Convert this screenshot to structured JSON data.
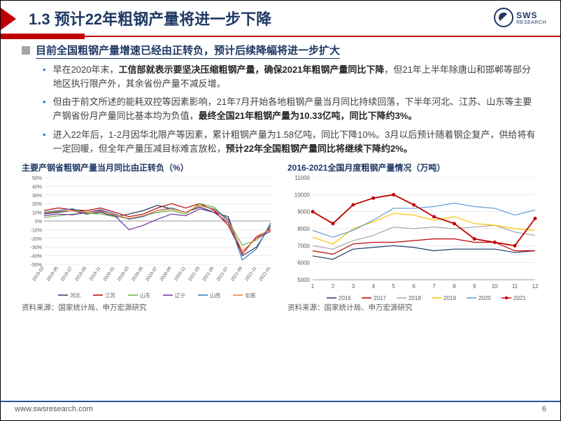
{
  "slide": {
    "title": "1.3 预计22年粗钢产量将进一步下降",
    "logo_text": "SWS",
    "logo_sub": "RESEARCH",
    "section_header": "目前全国粗钢产量增速已经由正转负，预计后续降幅将进一步扩大",
    "bullets": [
      {
        "pre": "早在2020年末，",
        "bold1": "工信部就表示要坚决压缩粗钢产量，确保2021年粗钢产量同比下降",
        "post1": "，但21年上半年除唐山和邯郸等部分地区执行限产外，其余省份产量不减反增。"
      },
      {
        "pre": "但由于前文所述的能耗双控等因素影响，21年7月开始各地粗钢产量当月同比持续回落，下半年河北、江苏、山东等主要产钢省份月产量同比基本均为负值，",
        "bold1": "最终全国21年粗钢产量为10.33亿吨，同比下降约3%。",
        "post1": ""
      },
      {
        "pre": "进入22年后，1-2月因华北限产等因素，累计粗钢产量为1.58亿吨，同比下降10%。3月以后预计随着钢企复产，供给将有一定回暖，但全年产量压减目标难言放松，",
        "bold1": "预计22年全国粗钢产量同比将继续下降约2%。",
        "post1": ""
      }
    ],
    "charts": {
      "left": {
        "title": "主要产钢省粗钢产量当月同比由正转负（%）",
        "source": "资料来源：国家统计局、申万宏源研究",
        "y_ticks": [
          "50%",
          "40%",
          "30%",
          "20%",
          "10%",
          "0%",
          "-10%",
          "-20%",
          "-30%",
          "-40%",
          "-50%"
        ],
        "x_ticks": [
          "2019-03",
          "2019-05",
          "2019-07",
          "2019-09",
          "2019-11",
          "2020-01",
          "2020-03",
          "2020-05",
          "2020-07",
          "2020-09",
          "2020-11",
          "2021-03",
          "2021-05",
          "2021-07",
          "2021-09",
          "2021-11",
          "2022-01"
        ],
        "legend": [
          {
            "label": "河北",
            "color": "#1f3864"
          },
          {
            "label": "江苏",
            "color": "#c00000"
          },
          {
            "label": "山东",
            "color": "#70ad47"
          },
          {
            "label": "辽宁",
            "color": "#7030a0"
          },
          {
            "label": "山西",
            "color": "#2e75b6"
          },
          {
            "label": "全国",
            "color": "#ed7d31"
          }
        ],
        "series": {
          "hebei": [
            8,
            10,
            12,
            8,
            10,
            5,
            8,
            12,
            18,
            14,
            10,
            16,
            10,
            5,
            -40,
            -30,
            -5
          ],
          "jiangsu": [
            12,
            15,
            13,
            12,
            15,
            10,
            5,
            8,
            15,
            20,
            15,
            20,
            12,
            -5,
            -38,
            -18,
            -10
          ],
          "shandong": [
            4,
            6,
            8,
            9,
            8,
            5,
            3,
            6,
            10,
            12,
            8,
            20,
            16,
            0,
            -28,
            -22,
            -8
          ],
          "liaoning": [
            6,
            8,
            7,
            10,
            12,
            6,
            -10,
            -5,
            2,
            8,
            6,
            14,
            10,
            -2,
            -35,
            -20,
            -12
          ],
          "shanxi": [
            10,
            12,
            14,
            10,
            13,
            8,
            2,
            5,
            12,
            15,
            10,
            18,
            14,
            2,
            -45,
            -32,
            -2
          ],
          "quanguo": [
            9,
            11,
            12,
            10,
            11,
            7,
            3,
            6,
            12,
            14,
            10,
            18,
            13,
            0,
            -35,
            -20,
            -8
          ]
        },
        "colors": {
          "hebei": "#1f3864",
          "jiangsu": "#c00000",
          "shandong": "#70ad47",
          "liaoning": "#7030a0",
          "shanxi": "#2e75b6",
          "quanguo": "#ed7d31"
        },
        "y_domain": [
          -50,
          50
        ]
      },
      "right": {
        "title": "2016-2021全国月度粗钢产量情况（万吨）",
        "source": "资料来源：国家统计局、申万宏源研究",
        "y_ticks": [
          "11000",
          "10000",
          "9000",
          "8000",
          "7000",
          "6000",
          "5000"
        ],
        "x_ticks": [
          "1",
          "2",
          "3",
          "4",
          "5",
          "6",
          "7",
          "8",
          "9",
          "10",
          "11",
          "12"
        ],
        "legend": [
          {
            "label": "2016",
            "color": "#1f3864"
          },
          {
            "label": "2017",
            "color": "#c00000"
          },
          {
            "label": "2018",
            "color": "#a6a6a6"
          },
          {
            "label": "2019",
            "color": "#ffc000"
          },
          {
            "label": "2020",
            "color": "#5b9bd5"
          },
          {
            "label": "2021",
            "color": "#c00000",
            "marker": true
          }
        ],
        "series": {
          "y2016": [
            6400,
            6200,
            6800,
            6900,
            7000,
            6900,
            6700,
            6800,
            6800,
            6800,
            6600,
            6700
          ],
          "y2017": [
            6700,
            6500,
            7100,
            7200,
            7200,
            7300,
            7400,
            7400,
            7200,
            7200,
            6700,
            6700
          ],
          "y2018": [
            7000,
            6800,
            7300,
            7600,
            8100,
            8000,
            8100,
            8000,
            8100,
            8200,
            7800,
            7600
          ],
          "y2019": [
            7500,
            7100,
            8000,
            8400,
            8900,
            8800,
            8500,
            8700,
            8300,
            8200,
            8000,
            7900
          ],
          "y2020": [
            7900,
            7500,
            7900,
            8500,
            9200,
            9200,
            9300,
            9500,
            9300,
            9200,
            8800,
            9100
          ],
          "y2021": [
            9000,
            8300,
            9400,
            9800,
            10000,
            9400,
            8700,
            8300,
            7400,
            7200,
            7000,
            8600
          ]
        },
        "colors": {
          "y2016": "#1f3864",
          "y2017": "#c00000",
          "y2018": "#a6a6a6",
          "y2019": "#ffc000",
          "y2020": "#5b9bd5",
          "y2021": "#c00000"
        },
        "y_domain": [
          5000,
          11000
        ]
      }
    },
    "footer_url": "www.swsresearch.com",
    "page_number": "6"
  }
}
